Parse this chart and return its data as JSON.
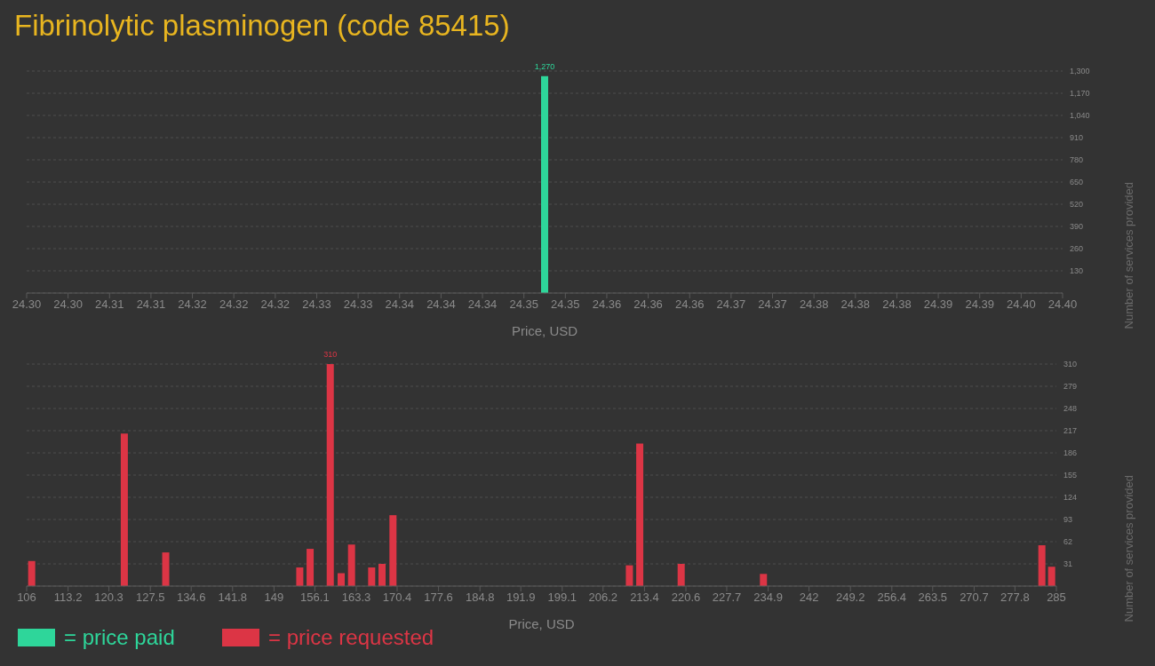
{
  "chart_data": [
    {
      "type": "bar",
      "title": "Fibrinolytic plasminogen (code 85415)",
      "xlabel": "Price, USD",
      "ylabel": "Number of services provided",
      "x": [
        24.35
      ],
      "series": [
        {
          "name": "= price paid",
          "color": "#2ed69a",
          "values": [
            1270
          ],
          "value_labels": [
            "1,270"
          ]
        }
      ],
      "xlim": [
        24.3,
        24.4
      ],
      "xticks": [
        {
          "value": 24.3,
          "label": "24.30"
        },
        {
          "value": 24.304,
          "label": "24.30"
        },
        {
          "value": 24.308,
          "label": "24.31"
        },
        {
          "value": 24.312,
          "label": "24.31"
        },
        {
          "value": 24.316,
          "label": "24.32"
        },
        {
          "value": 24.32,
          "label": "24.32"
        },
        {
          "value": 24.324,
          "label": "24.32"
        },
        {
          "value": 24.328,
          "label": "24.33"
        },
        {
          "value": 24.332,
          "label": "24.33"
        },
        {
          "value": 24.336,
          "label": "24.34"
        },
        {
          "value": 24.34,
          "label": "24.34"
        },
        {
          "value": 24.344,
          "label": "24.34"
        },
        {
          "value": 24.348,
          "label": "24.35"
        },
        {
          "value": 24.352,
          "label": "24.35"
        },
        {
          "value": 24.356,
          "label": "24.36"
        },
        {
          "value": 24.36,
          "label": "24.36"
        },
        {
          "value": 24.364,
          "label": "24.36"
        },
        {
          "value": 24.368,
          "label": "24.37"
        },
        {
          "value": 24.372,
          "label": "24.37"
        },
        {
          "value": 24.376,
          "label": "24.38"
        },
        {
          "value": 24.38,
          "label": "24.38"
        },
        {
          "value": 24.384,
          "label": "24.38"
        },
        {
          "value": 24.388,
          "label": "24.39"
        },
        {
          "value": 24.392,
          "label": "24.39"
        },
        {
          "value": 24.396,
          "label": "24.40"
        },
        {
          "value": 24.4,
          "label": "24.40"
        }
      ],
      "ylim": [
        0,
        1300
      ],
      "yticks": [
        {
          "value": 130,
          "label": "130"
        },
        {
          "value": 260,
          "label": "260"
        },
        {
          "value": 390,
          "label": "390"
        },
        {
          "value": 520,
          "label": "520"
        },
        {
          "value": 650,
          "label": "650"
        },
        {
          "value": 780,
          "label": "780"
        },
        {
          "value": 910,
          "label": "910"
        },
        {
          "value": 1040,
          "label": "1,040"
        },
        {
          "value": 1170,
          "label": "1,170"
        },
        {
          "value": 1300,
          "label": "1,300"
        }
      ],
      "grid": "y",
      "legend": "bottom left"
    },
    {
      "type": "bar",
      "xlabel": "Price, USD",
      "ylabel": "Number of services provided",
      "x": [
        106.8,
        122.9,
        130.1,
        153.4,
        155.2,
        158.7,
        160.6,
        162.4,
        165.9,
        167.7,
        169.6,
        210.7,
        212.5,
        219.7,
        234.0,
        282.4,
        284.1
      ],
      "series": [
        {
          "name": "= price requested",
          "color": "#dc3545",
          "values": [
            35,
            213,
            47,
            26,
            52,
            310,
            18,
            58,
            26,
            31,
            99,
            29,
            199,
            31,
            17,
            57,
            27
          ],
          "value_labels": [
            null,
            null,
            null,
            null,
            null,
            "310",
            null,
            null,
            null,
            null,
            null,
            null,
            null,
            null,
            null,
            null,
            null
          ]
        }
      ],
      "xlim": [
        106,
        285
      ],
      "xticks": [
        106,
        113.2,
        120.3,
        127.5,
        134.6,
        141.8,
        149,
        156.1,
        163.3,
        170.4,
        177.6,
        184.8,
        191.9,
        199.1,
        206.2,
        213.4,
        220.6,
        227.7,
        234.9,
        242,
        249.2,
        256.4,
        263.5,
        270.7,
        277.8,
        285
      ],
      "ylim": [
        0,
        310
      ],
      "yticks": [
        31,
        62,
        93,
        124,
        155,
        186,
        217,
        248,
        279,
        310
      ],
      "grid": "y",
      "legend": "bottom left"
    }
  ]
}
